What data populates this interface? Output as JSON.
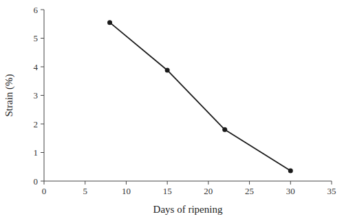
{
  "chart_data": {
    "type": "line",
    "x": [
      8,
      15,
      22,
      30
    ],
    "values": [
      5.55,
      3.88,
      1.8,
      0.36
    ],
    "xlim": [
      0,
      35
    ],
    "ylim": [
      0,
      6
    ],
    "xticks": [
      0,
      5,
      10,
      15,
      20,
      25,
      30,
      35
    ],
    "yticks": [
      0,
      1,
      2,
      3,
      4,
      5,
      6
    ],
    "xlabel": "Days of ripening",
    "ylabel": "Strain (%)",
    "color": "#1a1a1a",
    "marker": "circle",
    "grid": false
  }
}
